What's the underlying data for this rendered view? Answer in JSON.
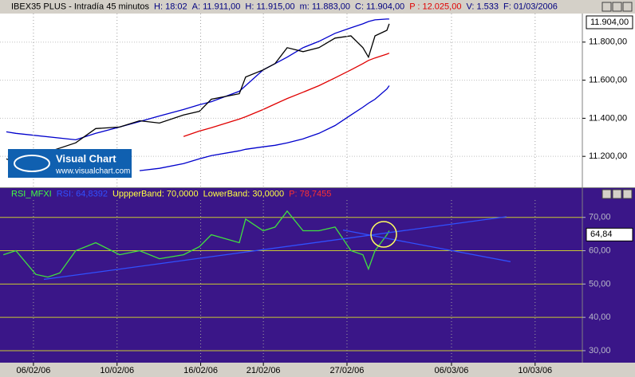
{
  "logo": {
    "name": "Visual Chart",
    "url": "www.visualchart.com"
  },
  "chart_data": [
    {
      "type": "line",
      "title_parts": [
        {
          "text": "IBEX35 PLUS - Intradía 45 minutos",
          "color": "#000000"
        },
        {
          "text": "H: 18:02",
          "color": "#000080"
        },
        {
          "text": "A: 11.911,00",
          "color": "#000080"
        },
        {
          "text": "H: 11.915,00",
          "color": "#000080"
        },
        {
          "text": "m: 11.883,00",
          "color": "#000080"
        },
        {
          "text": "C: 11.904,00",
          "color": "#000080"
        },
        {
          "text": "P : 12.025,00",
          "color": "#e00000"
        },
        {
          "text": "V: 1.533",
          "color": "#000080"
        },
        {
          "text": "F: 01/03/2006",
          "color": "#000080"
        }
      ],
      "x": [
        -1.3,
        -0.84,
        2.02,
        2.98,
        4.12,
        5.08,
        6.03,
        7.18,
        7.94,
        8.51,
        9.85,
        10.15,
        10.99,
        11.56,
        12.14,
        12.9,
        13.66,
        14.43,
        15.19,
        15.76,
        16.03,
        16.34,
        16.91,
        17.02
      ],
      "series": [
        {
          "color": "#0000cc",
          "values": [
            11329,
            11321,
            11287,
            11321,
            11354,
            11383,
            11412,
            11446,
            11471,
            11487,
            11542,
            11571,
            11654,
            11687,
            11721,
            11771,
            11804,
            11846,
            11875,
            11896,
            11908,
            11917,
            11921,
            11921
          ]
        },
        {
          "color": "#0000cc",
          "values": [
            null,
            null,
            null,
            null,
            null,
            11125,
            11137,
            11162,
            11187,
            11204,
            11229,
            11237,
            11250,
            11258,
            11271,
            11292,
            11321,
            11362,
            11417,
            11458,
            11479,
            11500,
            11554,
            11571
          ]
        },
        {
          "color": "#e00000",
          "values": [
            null,
            null,
            null,
            null,
            null,
            null,
            null,
            11304,
            11333,
            11350,
            11396,
            11408,
            11446,
            11475,
            11504,
            11537,
            11571,
            11612,
            11654,
            11687,
            11704,
            11717,
            11737,
            11742
          ]
        },
        {
          "color": "#000000",
          "values": [
            11187,
            11167,
            11271,
            11346,
            11354,
            11387,
            11375,
            11417,
            11437,
            11500,
            11529,
            11617,
            11654,
            11687,
            11771,
            11750,
            11771,
            11821,
            11833,
            11771,
            11721,
            11833,
            11862,
            11896
          ]
        }
      ],
      "xlim": [
        -1.6,
        26.26
      ],
      "ylim": [
        11037.5,
        11950
      ],
      "yticks": [
        {
          "value": 11200,
          "label": "11.200,00"
        },
        {
          "value": 11400,
          "label": "11.400,00"
        },
        {
          "value": 11600,
          "label": "11.600,00"
        },
        {
          "value": 11800,
          "label": "11.800,00"
        }
      ],
      "last_value": {
        "value": 11904,
        "label": "11.904,00"
      },
      "background": "#ffffff",
      "grid_color": "#c0c0c0",
      "tick_color": "#000000"
    },
    {
      "type": "line",
      "title_parts": [
        {
          "text": "RSI_MFXI",
          "color": "#40ff40"
        },
        {
          "text": "RSI: 64,8392",
          "color": "#3050ff"
        },
        {
          "text": "UppperBand: 70,0000",
          "color": "#ffff40"
        },
        {
          "text": "LowerBand: 30,0000",
          "color": "#ffff40"
        },
        {
          "text": "P: 78,7455",
          "color": "#ff3030"
        }
      ],
      "x": [
        -1.44,
        -0.84,
        0.11,
        0.69,
        1.26,
        2.02,
        2.98,
        4.12,
        5.08,
        6.03,
        7.18,
        7.94,
        8.51,
        9.85,
        10.15,
        10.99,
        11.56,
        12.14,
        12.9,
        13.66,
        14.43,
        15.19,
        15.76,
        16.03,
        16.34,
        16.91,
        17.02
      ],
      "series": [
        {
          "color": "#40e040",
          "values": [
            58.8,
            60,
            52.9,
            52.1,
            53.3,
            60,
            62.4,
            58.8,
            60,
            57.6,
            58.8,
            61.2,
            64.8,
            62.4,
            69.5,
            66,
            67.1,
            71.9,
            66,
            66,
            67.1,
            60,
            58.8,
            54.5,
            60,
            64.8,
            66
          ]
        },
        {
          "color": "#3050ff",
          "x": [
            0.5,
            22.63
          ],
          "values": [
            51.4,
            70.2
          ]
        },
        {
          "color": "#3050ff",
          "x": [
            14.81,
            22.82
          ],
          "values": [
            66.2,
            56.7
          ]
        }
      ],
      "xlim": [
        -1.6,
        26.26
      ],
      "ylim": [
        26.4,
        75.2
      ],
      "yticks": [
        {
          "value": 30,
          "label": "30,00"
        },
        {
          "value": 40,
          "label": "40,00"
        },
        {
          "value": 50,
          "label": "50,00"
        },
        {
          "value": 60,
          "label": "60,00"
        },
        {
          "value": 70,
          "label": "70,00"
        }
      ],
      "xticks": [
        {
          "value": 0,
          "label": "06/02/06"
        },
        {
          "value": 4,
          "label": "10/02/06"
        },
        {
          "value": 8,
          "label": "16/02/06"
        },
        {
          "value": 11,
          "label": "21/02/06"
        },
        {
          "value": 15,
          "label": "27/02/06"
        },
        {
          "value": 20,
          "label": "06/03/06"
        },
        {
          "value": 24,
          "label": "10/03/06"
        }
      ],
      "last_value": {
        "value": 64.84,
        "label": "64,84"
      },
      "background": "#3a1688",
      "grid_color": "#c8c832",
      "tick_color": "#b8b8c8"
    }
  ]
}
